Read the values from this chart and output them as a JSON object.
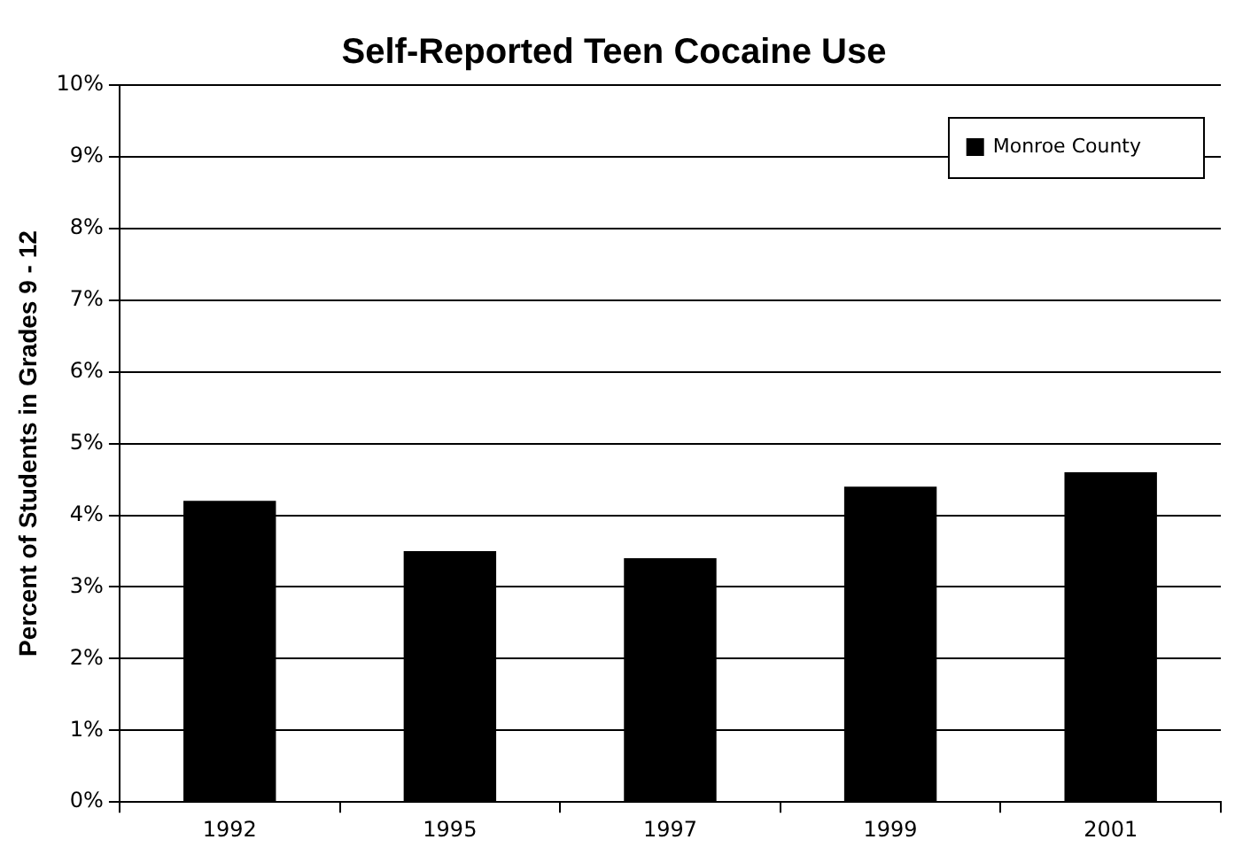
{
  "chart_data": {
    "type": "bar",
    "title": "Self-Reported Teen Cocaine Use",
    "ylabel": "Percent of Students in Grades 9 - 12",
    "categories": [
      "1992",
      "1995",
      "1997",
      "1999",
      "2001"
    ],
    "series": [
      {
        "name": "Monroe County",
        "color": "#000000",
        "values": [
          4.2,
          3.5,
          3.4,
          4.4,
          4.6
        ]
      }
    ],
    "ylim": [
      0,
      10
    ],
    "yticks": [
      {
        "value": 0,
        "label": "0%"
      },
      {
        "value": 1,
        "label": "1%"
      },
      {
        "value": 2,
        "label": "2%"
      },
      {
        "value": 3,
        "label": "3%"
      },
      {
        "value": 4,
        "label": "4%"
      },
      {
        "value": 5,
        "label": "5%"
      },
      {
        "value": 6,
        "label": "6%"
      },
      {
        "value": 7,
        "label": "7%"
      },
      {
        "value": 8,
        "label": "8%"
      },
      {
        "value": 9,
        "label": "9%"
      },
      {
        "value": 10,
        "label": "10%"
      }
    ],
    "grid": "y",
    "legend": "top right"
  }
}
